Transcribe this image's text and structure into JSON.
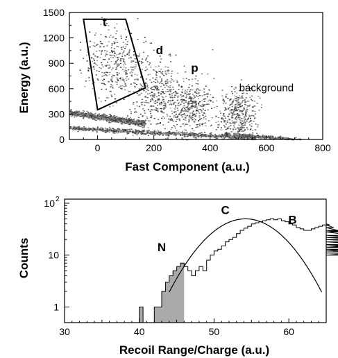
{
  "chart_data": [
    {
      "type": "scatter",
      "xlabel": "Fast Component (a.u.)",
      "ylabel": "Energy (a.u.)",
      "xlim": [
        -100,
        800
      ],
      "ylim": [
        0,
        1500
      ],
      "x_ticks": [
        "0",
        "200",
        "400",
        "600",
        "800"
      ],
      "y_ticks": [
        "0",
        "300",
        "600",
        "900",
        "1200",
        "1500"
      ],
      "annotations": [
        {
          "text": "t",
          "x": 25,
          "y": 1340,
          "bold": true
        },
        {
          "text": "d",
          "x": 220,
          "y": 1010,
          "bold": true
        },
        {
          "text": "p",
          "x": 345,
          "y": 800,
          "bold": true
        },
        {
          "text": "background",
          "x": 600,
          "y": 570,
          "bold": false
        }
      ],
      "gate_polygon": [
        [
          -50,
          1420
        ],
        [
          100,
          1420
        ],
        [
          170,
          610
        ],
        [
          0,
          350
        ]
      ],
      "clusters": [
        {
          "name": "band-upper",
          "x": [
            -100,
            170
          ],
          "y": [
            320,
            190
          ],
          "spread": 18,
          "density": "high"
        },
        {
          "name": "band-lower",
          "x": [
            -100,
            560
          ],
          "y": [
            140,
            20
          ],
          "spread": 12,
          "density": "high"
        },
        {
          "name": "band-tail",
          "x": [
            450,
            720
          ],
          "y": [
            70,
            0
          ],
          "spread": 10,
          "density": "medium"
        },
        {
          "name": "t-cluster",
          "cx": 60,
          "cy": 900,
          "sx": 55,
          "sy": 220,
          "density": "medium"
        },
        {
          "name": "d-cluster",
          "cx": 220,
          "cy": 540,
          "sx": 45,
          "sy": 200,
          "density": "medium"
        },
        {
          "name": "p-cluster",
          "cx": 330,
          "cy": 380,
          "sx": 40,
          "sy": 160,
          "density": "medium"
        },
        {
          "name": "background-cluster",
          "cx": 500,
          "cy": 300,
          "sx": 30,
          "sy": 140,
          "density": "medium"
        }
      ]
    },
    {
      "type": "line",
      "xlabel": "Recoil Range/Charge (a.u.)",
      "ylabel": "Counts",
      "xlim": [
        30,
        65
      ],
      "ylim": [
        0.5,
        120
      ],
      "yscale": "log",
      "x_ticks": [
        "30",
        "40",
        "50",
        "60"
      ],
      "y_ticks": [
        "1",
        "10"
      ],
      "y_top_tick": {
        "base": "10",
        "exp": "2"
      },
      "annotations": [
        {
          "text": "N",
          "x": 43,
          "y": 12
        },
        {
          "text": "C",
          "x": 51.5,
          "y": 62
        },
        {
          "text": "B",
          "x": 60.5,
          "y": 40
        }
      ],
      "histogram": {
        "bin_width": 0.5,
        "bin_start": 40,
        "counts": [
          1,
          0,
          0,
          0,
          1,
          1,
          2,
          3,
          4,
          5,
          6,
          7,
          6,
          5,
          4,
          5,
          6,
          5,
          8,
          10,
          12,
          13,
          15,
          18,
          20,
          22,
          26,
          30,
          33,
          36,
          40,
          42,
          44,
          46,
          48,
          50,
          48,
          50,
          46,
          44,
          40,
          38,
          34,
          32,
          30,
          30,
          32,
          34,
          36,
          38,
          40,
          38,
          34,
          30,
          28,
          30,
          28,
          24,
          22,
          20,
          18,
          16,
          14,
          15,
          13,
          12,
          11,
          10,
          12,
          16
        ],
        "shaded_end": 46
      },
      "fit_curve": {
        "type": "gaussian",
        "peak": 50,
        "mean": 54.2,
        "sigma": 4.0
      }
    }
  ]
}
